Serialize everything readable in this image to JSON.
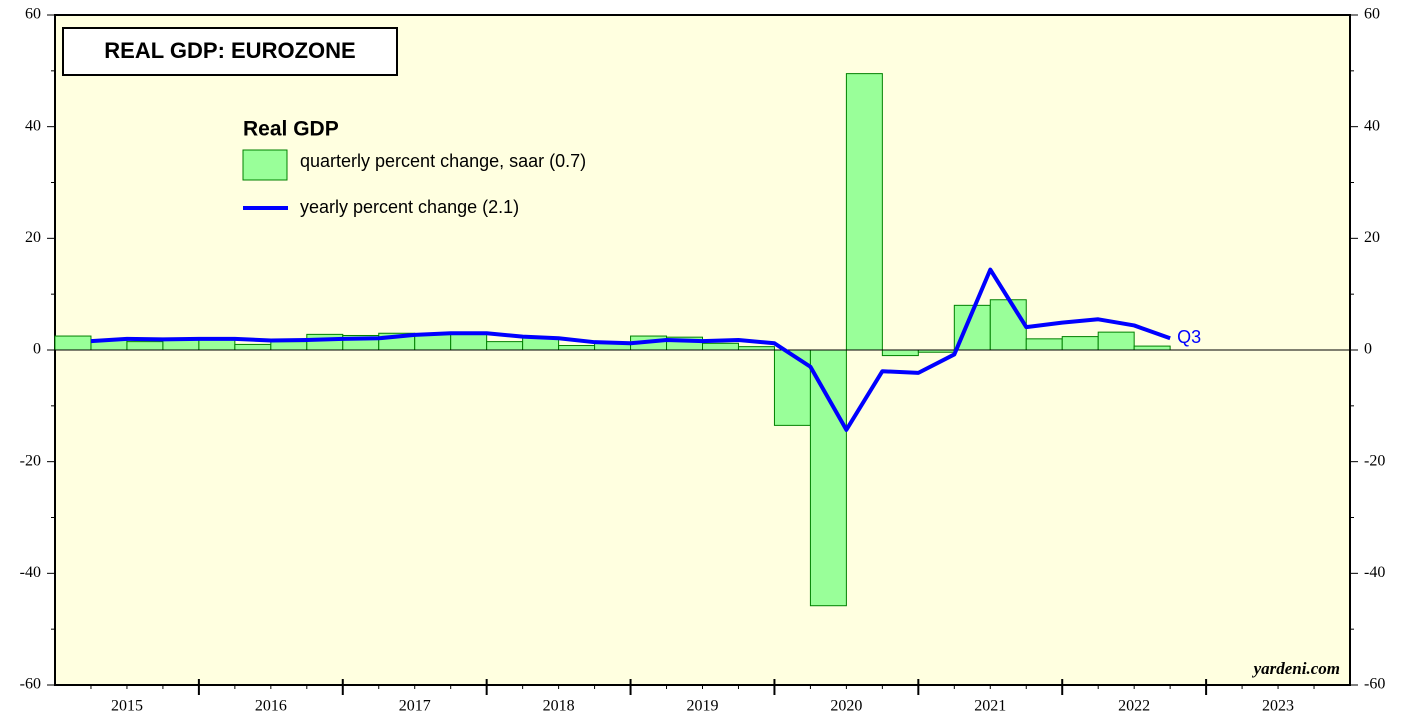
{
  "chart_data": {
    "type": "bar_line",
    "title": "REAL GDP: EUROZONE",
    "legend_title": "Real GDP",
    "years": [
      "2015",
      "2016",
      "2017",
      "2018",
      "2019",
      "2020",
      "2021",
      "2022",
      "2023"
    ],
    "series": [
      {
        "name": "quarterly percent change, saar (0.7)",
        "type": "bar",
        "color": "#99ff99",
        "edge": "#008000",
        "values": [
          2.5,
          1.8,
          1.5,
          1.8,
          2.0,
          1.0,
          1.5,
          2.8,
          2.6,
          3.0,
          2.8,
          2.8,
          1.5,
          2.2,
          0.8,
          1.4,
          2.5,
          2.3,
          1.2,
          0.6,
          -13.5,
          -45.8,
          49.5,
          -1.0,
          -0.4,
          8.0,
          9.0,
          2.0,
          2.4,
          3.2,
          0.7
        ]
      },
      {
        "name": "yearly percent change (2.1)",
        "type": "line",
        "color": "#0000ff",
        "values": [
          1.6,
          2.0,
          1.9,
          2.0,
          2.0,
          1.7,
          1.8,
          2.0,
          2.1,
          2.7,
          3.0,
          3.0,
          2.4,
          2.1,
          1.4,
          1.2,
          1.8,
          1.6,
          1.8,
          1.2,
          -3.0,
          -14.3,
          -3.8,
          -4.1,
          -0.8,
          14.4,
          4.1,
          4.9,
          5.5,
          4.4,
          2.1
        ]
      }
    ],
    "annotation": "Q3",
    "source": "yardeni.com",
    "ylim": [
      -60,
      60
    ],
    "yticks": [
      -60,
      -40,
      -20,
      0,
      20,
      40,
      60
    ]
  }
}
